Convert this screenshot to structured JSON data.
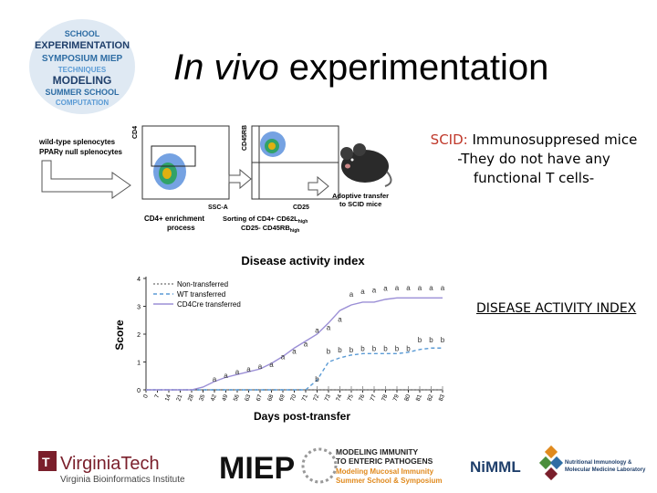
{
  "title": {
    "italic": "In vivo",
    "rest": " experimentation"
  },
  "logo_words": [
    "SCHOOL",
    "EXPERIMENTATION",
    "SYMPOSIUM MIEP",
    "TECHNIQUES",
    "MODELING",
    "SUMMER SCHOOL",
    "COMPUTATION"
  ],
  "scid": {
    "label": "SCID:",
    "line1": " Immunosuppresed mice",
    "line2": "-They do not have any",
    "line3": "functional T cells-"
  },
  "dai_label": "DISEASE ACTIVITY INDEX",
  "flow": {
    "input_line1": "wild-type splenocytes",
    "input_line2": "PPARγ null splenocytes",
    "plot1_ylabel": "CD4",
    "plot1_xlabel": "SSC-A",
    "plot2_ylabel": "CD45RB",
    "plot2_xlabel": "CD25",
    "caption1_line1": "CD4+ enrichment",
    "caption1_line2": "process",
    "caption2_line1": "Sorting of CD4+ CD62L",
    "caption2_sub1": "high",
    "caption2_line2": "CD25- CD45RB",
    "caption2_sub2": "high",
    "mouse_line1": "Adoptive transfer",
    "mouse_line2": "to SCID mice"
  },
  "chart_data": {
    "type": "line",
    "title": "Disease activity index",
    "xlabel": "Days post-transfer",
    "ylabel": "Score",
    "ylim": [
      0,
      4
    ],
    "yticks": [
      "0",
      "1",
      "2",
      "3",
      "4"
    ],
    "categories": [
      "0",
      "7",
      "14",
      "21",
      "28",
      "35",
      "42",
      "49",
      "56",
      "63",
      "67",
      "68",
      "69",
      "70",
      "71",
      "72",
      "73",
      "74",
      "75",
      "76",
      "77",
      "78",
      "79",
      "80",
      "81",
      "82",
      "83"
    ],
    "legend": [
      "Non-transferred",
      "WT transferred",
      "CD4Cre transferred"
    ],
    "series": [
      {
        "name": "Non-transferred",
        "color": "#888888",
        "values": [
          0,
          0,
          0,
          0,
          0,
          0,
          0,
          0,
          0,
          0,
          0,
          0,
          0,
          0,
          0,
          0,
          0,
          0,
          0,
          0,
          0,
          0,
          0,
          0,
          0,
          0,
          0
        ]
      },
      {
        "name": "WT transferred",
        "color": "#5b9bd5",
        "values": [
          0,
          0,
          0,
          0,
          0,
          0,
          0,
          0,
          0,
          0,
          0,
          0,
          0,
          0,
          0,
          0.35,
          1.0,
          1.15,
          1.25,
          1.3,
          1.3,
          1.3,
          1.3,
          1.35,
          1.45,
          1.5,
          1.5
        ]
      },
      {
        "name": "CD4Cre transferred",
        "color": "#9b8fd6",
        "values": [
          0,
          0,
          0,
          0,
          0,
          0.1,
          0.3,
          0.45,
          0.55,
          0.65,
          0.75,
          0.95,
          1.2,
          1.5,
          1.75,
          2.0,
          2.4,
          2.85,
          3.05,
          3.15,
          3.15,
          3.25,
          3.3,
          3.3,
          3.3,
          3.3,
          3.3
        ]
      }
    ],
    "annotations": [
      {
        "label": "a",
        "xi": 6,
        "y": 0.3
      },
      {
        "label": "a",
        "xi": 7,
        "y": 0.42
      },
      {
        "label": "a",
        "xi": 8,
        "y": 0.55
      },
      {
        "label": "a",
        "xi": 9,
        "y": 0.65
      },
      {
        "label": "a",
        "xi": 10,
        "y": 0.75
      },
      {
        "label": "a",
        "xi": 11,
        "y": 0.82
      },
      {
        "label": "a",
        "xi": 12,
        "y": 1.1
      },
      {
        "label": "a",
        "xi": 13,
        "y": 1.3
      },
      {
        "label": "a",
        "xi": 14,
        "y": 1.55
      },
      {
        "label": "a",
        "xi": 15,
        "y": 2.05
      },
      {
        "label": "a",
        "xi": 16,
        "y": 2.15
      },
      {
        "label": "a",
        "xi": 17,
        "y": 2.45
      },
      {
        "label": "a",
        "xi": 18,
        "y": 3.35
      },
      {
        "label": "a",
        "xi": 19,
        "y": 3.45
      },
      {
        "label": "a",
        "xi": 20,
        "y": 3.5
      },
      {
        "label": "a",
        "xi": 21,
        "y": 3.55
      },
      {
        "label": "a",
        "xi": 22,
        "y": 3.58
      },
      {
        "label": "a",
        "xi": 23,
        "y": 3.58
      },
      {
        "label": "a",
        "xi": 24,
        "y": 3.58
      },
      {
        "label": "a",
        "xi": 25,
        "y": 3.58
      },
      {
        "label": "a",
        "xi": 26,
        "y": 3.58
      },
      {
        "label": "b",
        "xi": 15,
        "y": 0.3
      },
      {
        "label": "b",
        "xi": 16,
        "y": 1.3
      },
      {
        "label": "b",
        "xi": 17,
        "y": 1.35
      },
      {
        "label": "b",
        "xi": 18,
        "y": 1.35
      },
      {
        "label": "b",
        "xi": 19,
        "y": 1.4
      },
      {
        "label": "b",
        "xi": 20,
        "y": 1.4
      },
      {
        "label": "b",
        "xi": 21,
        "y": 1.4
      },
      {
        "label": "b",
        "xi": 22,
        "y": 1.4
      },
      {
        "label": "b",
        "xi": 23,
        "y": 1.4
      },
      {
        "label": "b",
        "xi": 24,
        "y": 1.7
      },
      {
        "label": "b",
        "xi": 25,
        "y": 1.7
      },
      {
        "label": "b",
        "xi": 26,
        "y": 1.7
      }
    ]
  },
  "footer": {
    "vt_name": "VirginiaTech",
    "vt_sub": "Virginia Bioinformatics Institute",
    "miep": "MIEP",
    "miep_line1": "MODELING IMMUNITY",
    "miep_line2": "TO ENTERIC PATHOGENS",
    "miep_line3": "Modeling Mucosal Immunity",
    "miep_line4": "Summer School & Symposium",
    "nimml": "NiMML",
    "nimml_line1": "Nutritional Immunology &",
    "nimml_line2": "Molecular Medicine Laboratory"
  }
}
